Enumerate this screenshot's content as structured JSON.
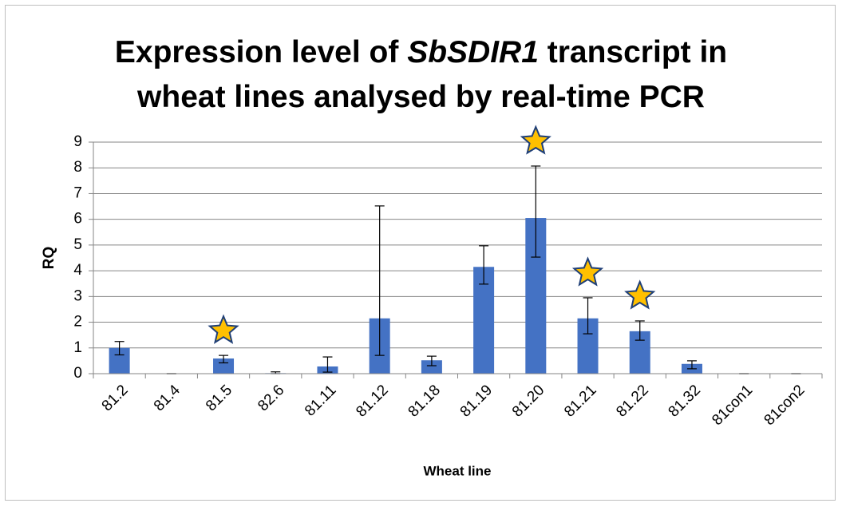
{
  "chart_data": {
    "type": "bar",
    "title": [
      "Expression level of",
      "SbSDIR1",
      "transcript in",
      "wheat lines analysed by real-time PCR"
    ],
    "x_label": "Wheat line",
    "y_label": "RQ",
    "categories": [
      "81.2",
      "81.4",
      "81.5",
      "82.6",
      "81.11",
      "81.12",
      "81.18",
      "81.19",
      "81.20",
      "81.21",
      "81.22",
      "81.32",
      "81con1",
      "81con2"
    ],
    "values": [
      1.0,
      0,
      0.59,
      0.02,
      0.28,
      2.15,
      0.52,
      4.15,
      6.05,
      2.15,
      1.65,
      0.38,
      0,
      0
    ],
    "error_plus": [
      0.25,
      0,
      0.12,
      0.05,
      0.37,
      4.37,
      0.16,
      0.82,
      2.02,
      0.8,
      0.4,
      0.12,
      0,
      0
    ],
    "error_minus": [
      0.27,
      0,
      0.17,
      0.02,
      0.22,
      1.44,
      0.21,
      0.67,
      1.52,
      0.6,
      0.35,
      0.19,
      0,
      0
    ],
    "significant": [
      false,
      false,
      true,
      false,
      false,
      false,
      false,
      false,
      true,
      true,
      true,
      false,
      false,
      false
    ],
    "color": "#4472c4",
    "ylim": [
      0,
      9
    ],
    "yticks": [
      0,
      1,
      2,
      3,
      4,
      5,
      6,
      7,
      8,
      9
    ],
    "grid": true
  }
}
